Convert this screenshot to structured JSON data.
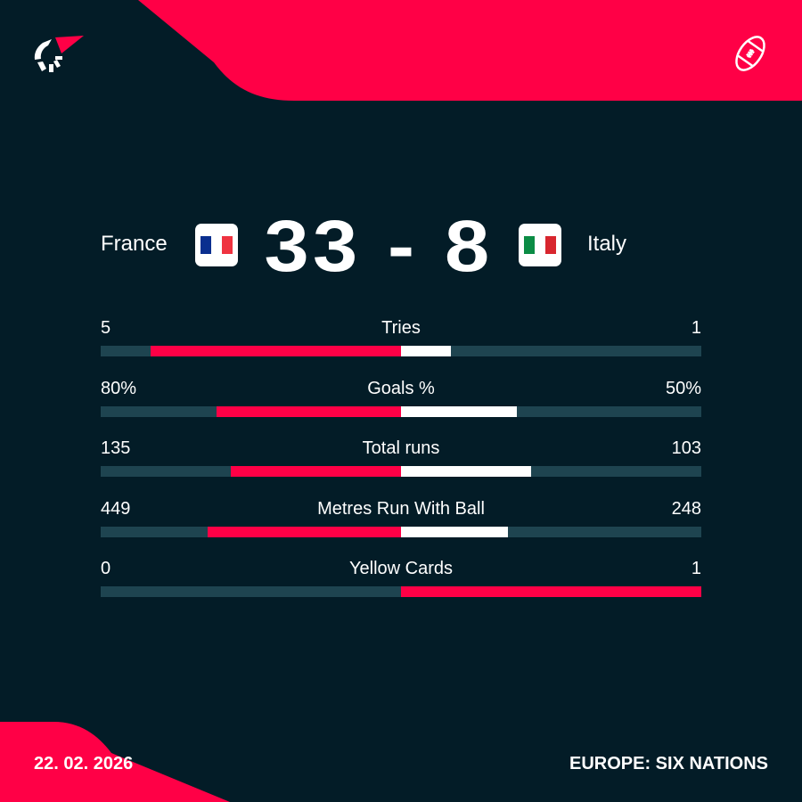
{
  "colors": {
    "background": "#031c27",
    "accent": "#ff0046",
    "track": "#1e4450",
    "white": "#ffffff"
  },
  "icons": {
    "logo": "flashscore-logo",
    "sport": "rugby-ball-icon"
  },
  "match": {
    "home": {
      "name": "France",
      "flag": [
        "#0a2f8f",
        "#ffffff",
        "#ef3340"
      ]
    },
    "away": {
      "name": "Italy",
      "flag": [
        "#0b8c45",
        "#ffffff",
        "#d8262e"
      ]
    },
    "score": "33 - 8"
  },
  "stats": [
    {
      "label": "Tries",
      "home": "5",
      "away": "1",
      "home_share": 0.833,
      "away_share": 0.167,
      "home_color": "#ff0046",
      "away_color": "#ffffff"
    },
    {
      "label": "Goals %",
      "home": "80%",
      "away": "50%",
      "home_share": 0.615,
      "away_share": 0.385,
      "home_color": "#ff0046",
      "away_color": "#ffffff"
    },
    {
      "label": "Total runs",
      "home": "135",
      "away": "103",
      "home_share": 0.567,
      "away_share": 0.433,
      "home_color": "#ff0046",
      "away_color": "#ffffff"
    },
    {
      "label": "Metres Run With Ball",
      "home": "449",
      "away": "248",
      "home_share": 0.644,
      "away_share": 0.356,
      "home_color": "#ff0046",
      "away_color": "#ffffff"
    },
    {
      "label": "Yellow Cards",
      "home": "0",
      "away": "1",
      "home_share": 0,
      "away_share": 1,
      "home_color": "#ff0046",
      "away_color": "#ff0046"
    }
  ],
  "footer": {
    "date": "22. 02. 2026",
    "competition": "EUROPE: SIX NATIONS"
  }
}
